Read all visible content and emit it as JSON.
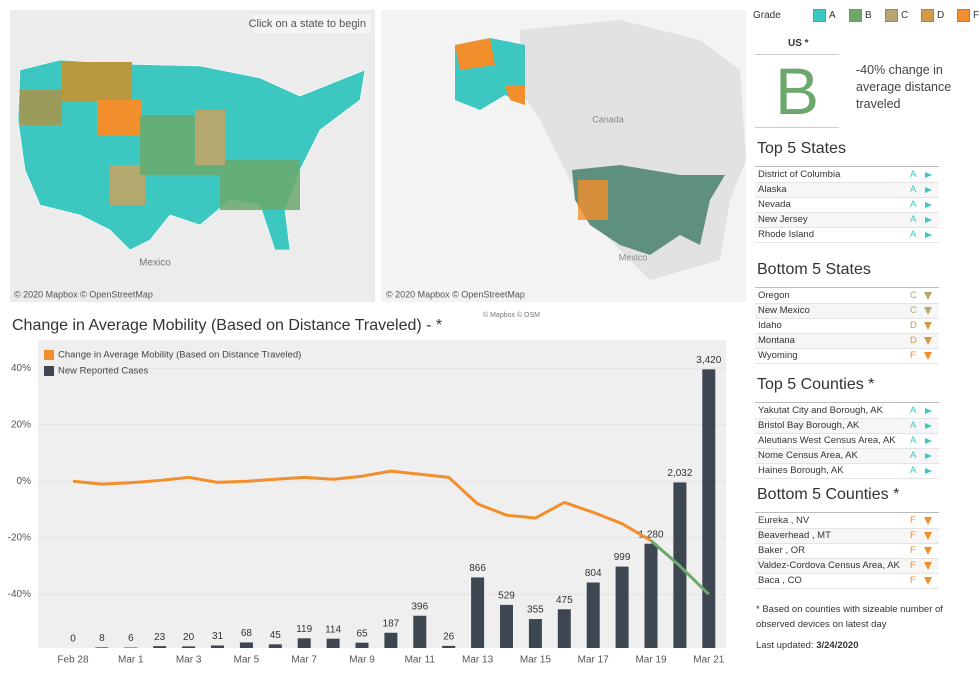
{
  "map_hint": "Click on a state to begin",
  "maps": [
    {
      "labels": [
        "Mexico"
      ],
      "credit": "© 2020 Mapbox © OpenStreetMap"
    },
    {
      "labels": [
        "Canada",
        "Mexico"
      ],
      "credit": "© 2020 Mapbox © OpenStreetMap"
    }
  ],
  "map_credit_small": "© Mapbox © OSM",
  "grade_legend": {
    "title": "Grade",
    "grades": [
      {
        "label": "A",
        "color": "#3cc8c0"
      },
      {
        "label": "B",
        "color": "#6aa86b"
      },
      {
        "label": "C",
        "color": "#b5a86f"
      },
      {
        "label": "D",
        "color": "#d49a48"
      },
      {
        "label": "F",
        "color": "#f28e2b"
      }
    ]
  },
  "us": {
    "label": "US *",
    "grade": "B",
    "description": "-40% change in average distance traveled"
  },
  "lists": [
    {
      "title": "Top 5 States",
      "rows": [
        {
          "name": "District of Columbia",
          "grade": "A"
        },
        {
          "name": "Alaska",
          "grade": "A"
        },
        {
          "name": "Nevada",
          "grade": "A"
        },
        {
          "name": "New Jersey",
          "grade": "A"
        },
        {
          "name": "Rhode Island",
          "grade": "A"
        }
      ]
    },
    {
      "title": "Bottom 5 States",
      "rows": [
        {
          "name": "Oregon",
          "grade": "C"
        },
        {
          "name": "New Mexico",
          "grade": "C"
        },
        {
          "name": "Idaho",
          "grade": "D"
        },
        {
          "name": "Montana",
          "grade": "D"
        },
        {
          "name": "Wyoming",
          "grade": "F"
        }
      ]
    },
    {
      "title": "Top 5 Counties *",
      "rows": [
        {
          "name": "Yakutat City and Borough, AK",
          "grade": "A"
        },
        {
          "name": "Bristol Bay Borough, AK",
          "grade": "A"
        },
        {
          "name": "Aleutians West Census Area, AK",
          "grade": "A"
        },
        {
          "name": "Nome Census Area, AK",
          "grade": "A"
        },
        {
          "name": "Haines Borough, AK",
          "grade": "A"
        }
      ]
    },
    {
      "title": "Bottom 5 Counties *",
      "rows": [
        {
          "name": "Eureka , NV",
          "grade": "F"
        },
        {
          "name": "Beaverhead , MT",
          "grade": "F"
        },
        {
          "name": "Baker , OR",
          "grade": "F"
        },
        {
          "name": "Valdez-Cordova Census Area, AK",
          "grade": "F"
        },
        {
          "name": "Baca , CO",
          "grade": "F"
        }
      ]
    }
  ],
  "footnote": "* Based on counties with sizeable number of observed devices on latest day",
  "last_updated": {
    "label": "Last updated:",
    "date": "3/24/2020"
  },
  "chart_data": {
    "type": "combo",
    "title": "Change in Average Mobility (Based on Distance Traveled) - *",
    "categories": [
      "Feb 28",
      null,
      "Mar 1",
      null,
      "Mar 3",
      null,
      "Mar 5",
      null,
      "Mar 7",
      null,
      "Mar 9",
      null,
      "Mar 11",
      null,
      "Mar 13",
      null,
      "Mar 15",
      null,
      "Mar 17",
      null,
      "Mar 19",
      null,
      "Mar 21"
    ],
    "ylim": [
      -59,
      50
    ],
    "yticks": [
      {
        "value": -40,
        "label": "-40%"
      },
      {
        "value": -20,
        "label": "-20%"
      },
      {
        "value": 0,
        "label": "0%"
      },
      {
        "value": 20,
        "label": "20%"
      },
      {
        "value": 40,
        "label": "40%"
      }
    ],
    "y2lim": [
      0,
      3780
    ],
    "grid": true,
    "series": [
      {
        "name": "Change in Average Mobility (Based on Distance Traveled)",
        "type": "line",
        "color": "#f28e2b",
        "values": [
          0,
          -1,
          -0.5,
          0.3,
          1.4,
          -0.4,
          0,
          0.7,
          1.4,
          0.7,
          1.8,
          3.6,
          2.5,
          1.4,
          -8,
          -12,
          -13,
          -7.5,
          -11,
          -15,
          -21,
          null,
          null
        ]
      },
      {
        "name": "New Reported Cases",
        "type": "bar",
        "axis": "y2",
        "color": "#3d4651",
        "values": [
          0,
          8,
          6,
          23,
          20,
          31,
          68,
          45,
          119,
          114,
          65,
          187,
          396,
          26,
          866,
          529,
          355,
          475,
          804,
          999,
          1280,
          2032,
          3420
        ],
        "value_labels": [
          "0",
          "8",
          "6",
          "23",
          "20",
          "31",
          "68",
          "45",
          "119",
          "114",
          "65",
          "187",
          "396",
          "26",
          "866",
          "529",
          "355",
          "475",
          "804",
          "999",
          "1,280",
          "2,032",
          "3,420"
        ]
      },
      {
        "type": "line",
        "color": "#6aa86b",
        "values": [
          null,
          null,
          null,
          null,
          null,
          null,
          null,
          null,
          null,
          null,
          null,
          null,
          null,
          null,
          null,
          null,
          null,
          null,
          null,
          null,
          -21,
          -30,
          -40
        ]
      }
    ]
  }
}
